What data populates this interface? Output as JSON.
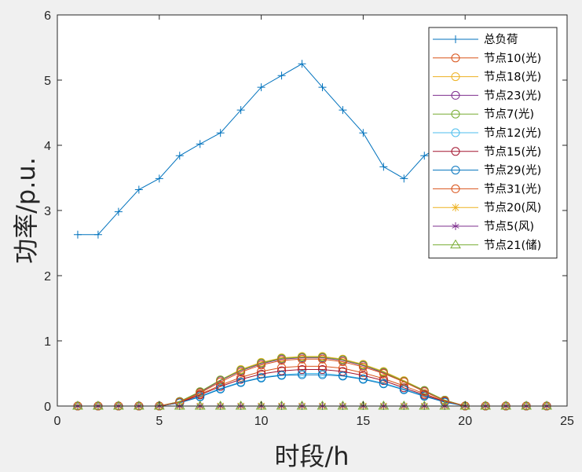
{
  "chart_data": {
    "type": "line",
    "xlabel": "时段/h",
    "ylabel": "功率/p.u.",
    "xlim": [
      0,
      25
    ],
    "ylim": [
      0,
      6
    ],
    "xticks": [
      0,
      5,
      10,
      15,
      20,
      25
    ],
    "yticks": [
      0,
      1,
      2,
      3,
      4,
      5,
      6
    ],
    "grid": false,
    "legend_position": "top-right",
    "x": [
      1,
      2,
      3,
      4,
      5,
      6,
      7,
      8,
      9,
      10,
      11,
      12,
      13,
      14,
      15,
      16,
      17,
      18,
      19,
      20,
      21,
      22,
      23,
      24
    ],
    "series": [
      {
        "name": "总负荷",
        "color": "#0072BD",
        "marker": "plus",
        "values": [
          2.63,
          2.63,
          2.98,
          3.32,
          3.49,
          3.84,
          4.02,
          4.19,
          4.54,
          4.89,
          5.07,
          5.25,
          4.89,
          4.54,
          4.19,
          3.67,
          3.49,
          3.84,
          4.02,
          4.02,
          4.19,
          4.02,
          3.67,
          3.32
        ]
      },
      {
        "name": "节点10(光)",
        "color": "#D95319",
        "marker": "circle",
        "values": [
          0,
          0,
          0,
          0,
          0,
          0.06,
          0.18,
          0.32,
          0.44,
          0.53,
          0.59,
          0.61,
          0.61,
          0.58,
          0.51,
          0.42,
          0.31,
          0.19,
          0.07,
          0,
          0,
          0,
          0,
          0
        ]
      },
      {
        "name": "节点18(光)",
        "color": "#EDB120",
        "marker": "circle",
        "values": [
          0,
          0,
          0,
          0,
          0,
          0.07,
          0.22,
          0.4,
          0.56,
          0.67,
          0.74,
          0.76,
          0.76,
          0.72,
          0.64,
          0.53,
          0.39,
          0.24,
          0.09,
          0,
          0,
          0,
          0,
          0
        ]
      },
      {
        "name": "节点23(光)",
        "color": "#7E2F8E",
        "marker": "circle",
        "values": [
          0,
          0,
          0,
          0,
          0,
          0.07,
          0.21,
          0.39,
          0.54,
          0.65,
          0.72,
          0.74,
          0.74,
          0.7,
          0.62,
          0.51,
          0.38,
          0.23,
          0.09,
          0,
          0,
          0,
          0,
          0
        ]
      },
      {
        "name": "节点7(光)",
        "color": "#77AC30",
        "marker": "circle",
        "values": [
          0,
          0,
          0,
          0,
          0,
          0.07,
          0.22,
          0.4,
          0.55,
          0.66,
          0.73,
          0.75,
          0.75,
          0.71,
          0.63,
          0.52,
          0.38,
          0.24,
          0.09,
          0,
          0,
          0,
          0,
          0
        ]
      },
      {
        "name": "节点12(光)",
        "color": "#4DBEEE",
        "marker": "circle",
        "values": [
          0,
          0,
          0,
          0,
          0,
          0.05,
          0.15,
          0.27,
          0.37,
          0.44,
          0.48,
          0.5,
          0.5,
          0.47,
          0.42,
          0.35,
          0.26,
          0.16,
          0.06,
          0,
          0,
          0,
          0,
          0
        ]
      },
      {
        "name": "节点15(光)",
        "color": "#A2142F",
        "marker": "circle",
        "values": [
          0,
          0,
          0,
          0,
          0,
          0.05,
          0.17,
          0.3,
          0.41,
          0.49,
          0.54,
          0.56,
          0.56,
          0.53,
          0.47,
          0.39,
          0.28,
          0.17,
          0.07,
          0,
          0,
          0,
          0,
          0
        ]
      },
      {
        "name": "节点29(光)",
        "color": "#0072BD",
        "marker": "circle",
        "values": [
          0,
          0,
          0,
          0,
          0,
          0.05,
          0.14,
          0.26,
          0.36,
          0.43,
          0.47,
          0.48,
          0.48,
          0.46,
          0.41,
          0.34,
          0.25,
          0.15,
          0.06,
          0,
          0,
          0,
          0,
          0
        ]
      },
      {
        "name": "节点31(光)",
        "color": "#D95319",
        "marker": "circle",
        "values": [
          0,
          0,
          0,
          0,
          0,
          0.06,
          0.2,
          0.37,
          0.52,
          0.63,
          0.7,
          0.72,
          0.72,
          0.68,
          0.6,
          0.5,
          0.37,
          0.22,
          0.08,
          0,
          0,
          0,
          0,
          0
        ]
      },
      {
        "name": "节点20(风)",
        "color": "#EDB120",
        "marker": "star",
        "values": [
          0,
          0,
          0,
          0,
          0,
          0,
          0,
          0,
          0,
          0,
          0,
          0,
          0,
          0,
          0,
          0,
          0,
          0,
          0,
          0,
          0,
          0,
          0,
          0
        ]
      },
      {
        "name": "节点5(风)",
        "color": "#7E2F8E",
        "marker": "asterisk",
        "values": [
          0,
          0,
          0,
          0,
          0,
          0,
          0,
          0,
          0,
          0,
          0,
          0,
          0,
          0,
          0,
          0,
          0,
          0,
          0,
          0,
          0,
          0,
          0,
          0
        ]
      },
      {
        "name": "节点21(储)",
        "color": "#77AC30",
        "marker": "triangle",
        "values": [
          0,
          0,
          0,
          0,
          0,
          0,
          0,
          0,
          0,
          0,
          0,
          0,
          0,
          0,
          0,
          0,
          0,
          0,
          0,
          0,
          0,
          0,
          0,
          0
        ]
      }
    ]
  }
}
